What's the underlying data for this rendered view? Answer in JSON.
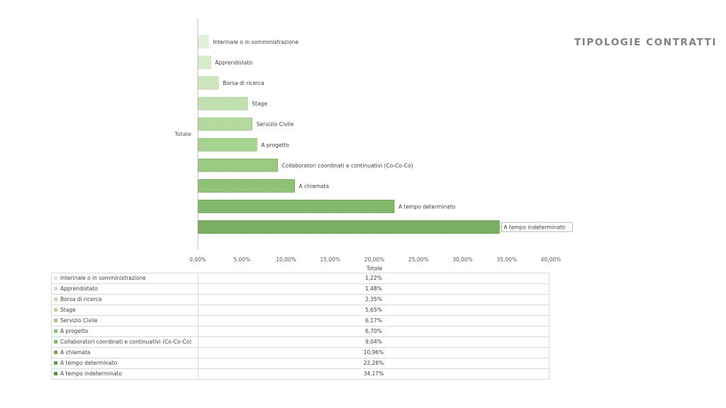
{
  "page_title": "TIPOLOGIE CONTRATTI",
  "chart_data": {
    "type": "bar",
    "orientation": "horizontal",
    "category_axis_label": "Totale",
    "value_axis_label": "Totale",
    "xlim": [
      0,
      40
    ],
    "x_tick_labels": [
      "0,00%",
      "5,00%",
      "10,00%",
      "15,00%",
      "20,00%",
      "25,00%",
      "30,00%",
      "35,00%",
      "40,00%"
    ],
    "grid": false,
    "legend": "table-below",
    "series": [
      {
        "name": "Interinale o in somministrazione",
        "value": 1.22,
        "label": "1,22%",
        "color": "#dbe9d3"
      },
      {
        "name": "Apprendistato",
        "value": 1.48,
        "label": "1,48%",
        "color": "#cfe2c4"
      },
      {
        "name": "Borsa di ricerca",
        "value": 2.35,
        "label": "2,35%",
        "color": "#c2dbb4"
      },
      {
        "name": "Stage",
        "value": 5.65,
        "label": "5,65%",
        "color": "#b4d3a2"
      },
      {
        "name": "Servizio Civile",
        "value": 6.17,
        "label": "6,17%",
        "color": "#a4c98f"
      },
      {
        "name": "A progetto",
        "value": 6.7,
        "label": "6,70%",
        "color": "#93bf7c"
      },
      {
        "name": "Collaboratori coordinati e continuativi (Co-Co-Co)",
        "value": 9.04,
        "label": "9,04%",
        "color": "#84b46c"
      },
      {
        "name": "A chiamata",
        "value": 10.96,
        "label": "10,96%",
        "color": "#76a95d"
      },
      {
        "name": "A tempo determinato",
        "value": 22.26,
        "label": "22,26%",
        "color": "#689c50"
      },
      {
        "name": "A tempo indeterminato",
        "value": 34.17,
        "label": "34,17%",
        "color": "#5a8f44"
      }
    ]
  }
}
